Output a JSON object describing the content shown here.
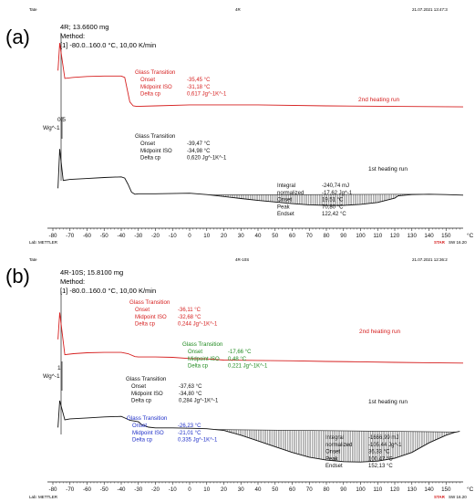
{
  "colors": {
    "red": "#d62020",
    "black": "#111111",
    "green": "#1e8a1e",
    "blue": "#1f2fc8",
    "hatch": "#555555"
  },
  "panels": [
    {
      "letter": "(a)",
      "topleft": "Tate",
      "topcenter": "4R",
      "topright": "21.07.2021 13:47:3",
      "sample": "4R; 13.6600 mg",
      "method": "Method:",
      "program": "[1] -80.0..160.0 °C, 10,00 K/min",
      "footer_left": "Lab: METTLER",
      "footer_right_brand": "STAR",
      "footer_right": "SW 16.20",
      "axis_unit": "°C",
      "y_scale_value": "0.5",
      "y_scale_unit": "Wg^-1",
      "chart_data": {
        "type": "line",
        "title": "",
        "xlabel": "°C",
        "ylabel": "Wg^-1",
        "xlim": [
          -80,
          160
        ],
        "x_ticks": [
          -80,
          -70,
          -60,
          -50,
          -40,
          -30,
          -20,
          -10,
          0,
          10,
          20,
          30,
          40,
          50,
          60,
          70,
          80,
          90,
          100,
          110,
          120,
          130,
          140,
          150
        ],
        "series": [
          {
            "name": "2nd heating run",
            "color": "red",
            "x": [
              -77,
              -76,
              -73,
              -68,
              -60,
              -50,
              -40,
              -38,
              -35,
              -33,
              -31,
              -20,
              0,
              40,
              80,
              120,
              160
            ],
            "y": [
              0.78,
              0.92,
              0.74,
              0.745,
              0.75,
              0.752,
              0.752,
              0.745,
              0.62,
              0.6,
              0.597,
              0.6,
              0.605,
              0.605,
              0.6,
              0.597,
              0.595
            ]
          },
          {
            "name": "1st heating run",
            "color": "black",
            "x": [
              -77,
              -76,
              -74,
              -70,
              -60,
              -50,
              -40,
              -38,
              -36,
              -34,
              -32,
              -30,
              -20,
              0,
              10,
              20,
              30,
              40,
              50,
              60,
              70,
              80,
              90,
              100,
              110,
              120,
              122,
              130,
              140,
              150,
              160
            ],
            "y": [
              0.18,
              0.38,
              0.22,
              0.225,
              0.23,
              0.235,
              0.238,
              0.232,
              0.2,
              0.16,
              0.15,
              0.152,
              0.152,
              0.155,
              0.148,
              0.138,
              0.128,
              0.118,
              0.11,
              0.102,
              0.096,
              0.093,
              0.093,
              0.098,
              0.108,
              0.13,
              0.142,
              0.148,
              0.15,
              0.148,
              0.145
            ]
          }
        ],
        "annotations": [
          {
            "color": "red",
            "title": "Glass Transition",
            "rows": [
              [
                "Onset",
                "-35,45 °C"
              ],
              [
                "Midpoint ISO",
                "-31,18 °C"
              ],
              [
                "Delta cp",
                "0,617 Jg^-1K^-1"
              ]
            ]
          },
          {
            "color": "black",
            "title": "Glass Transition",
            "rows": [
              [
                "Onset",
                "-39,47 °C"
              ],
              [
                "Midpoint ISO",
                "-34,98 °C"
              ],
              [
                "Delta cp",
                "0,620 Jg^-1K^-1"
              ]
            ]
          },
          {
            "color": "black",
            "title": "",
            "rows": [
              [
                "Integral",
                "-240,74 mJ"
              ],
              [
                "normalized",
                "-17,62 Jg^-1"
              ],
              [
                "Onset",
                "19,51 °C"
              ],
              [
                "Peak",
                "70,80 °C"
              ],
              [
                "Endset",
                "122,42 °C"
              ]
            ]
          }
        ],
        "integration": {
          "from": 12,
          "to": 140
        }
      }
    },
    {
      "letter": "(b)",
      "topleft": "Tate",
      "topcenter": "4R-10S",
      "topright": "21.07.2021 12:36:2",
      "sample": "4R-10S; 15.8100 mg",
      "method": "Method:",
      "program": "[1] -80.0..160.0 °C, 10,00 K/min",
      "footer_left": "Lab: METTLER",
      "footer_right_brand": "STAR",
      "footer_right": "SW 16.20",
      "axis_unit": "°C",
      "y_scale_value": "1",
      "y_scale_unit": "Wg^-1",
      "chart_data": {
        "type": "line",
        "title": "",
        "xlabel": "°C",
        "ylabel": "Wg^-1",
        "xlim": [
          -80,
          160
        ],
        "x_ticks": [
          -80,
          -70,
          -60,
          -50,
          -40,
          -30,
          -20,
          -10,
          0,
          10,
          20,
          30,
          40,
          50,
          60,
          70,
          80,
          90,
          100,
          110,
          120,
          130,
          140,
          150
        ],
        "series": [
          {
            "name": "2nd heating run",
            "color": "red",
            "x": [
              -77,
              -76,
              -73,
              -68,
              -60,
              -50,
              -40,
              -36,
              -32,
              -30,
              -20,
              -10,
              0,
              10,
              20,
              40,
              60,
              80,
              100,
              120,
              140,
              160
            ],
            "y": [
              0.72,
              0.86,
              0.64,
              0.645,
              0.65,
              0.652,
              0.652,
              0.645,
              0.63,
              0.628,
              0.628,
              0.626,
              0.62,
              0.618,
              0.612,
              0.61,
              0.608,
              0.605,
              0.603,
              0.6,
              0.598,
              0.596
            ]
          },
          {
            "name": "1st heating run",
            "color": "black",
            "x": [
              -77,
              -76,
              -73,
              -70,
              -60,
              -50,
              -40,
              -38,
              -35,
              -30,
              -28,
              -24,
              -20,
              -10,
              0,
              10,
              20,
              30,
              40,
              50,
              60,
              70,
              80,
              90,
              100,
              110,
              120,
              130,
              140,
              150,
              155,
              158
            ],
            "y": [
              0.26,
              0.4,
              0.3,
              0.305,
              0.31,
              0.315,
              0.318,
              0.31,
              0.298,
              0.29,
              0.275,
              0.262,
              0.258,
              0.258,
              0.256,
              0.254,
              0.245,
              0.22,
              0.19,
              0.16,
              0.13,
              0.105,
              0.09,
              0.082,
              0.08,
              0.085,
              0.1,
              0.13,
              0.18,
              0.22,
              0.235,
              0.24
            ]
          }
        ],
        "annotations": [
          {
            "color": "red",
            "title": "Glass Transition",
            "rows": [
              [
                "Onset",
                "-36,11 °C"
              ],
              [
                "Midpoint ISO",
                "-32,68 °C"
              ],
              [
                "Delta cp",
                "0,244 Jg^-1K^-1"
              ]
            ]
          },
          {
            "color": "green",
            "title": "Glass Transition",
            "rows": [
              [
                "Onset",
                "-17,66 °C"
              ],
              [
                "Midpoint ISO",
                "0,48 °C"
              ],
              [
                "Delta cp",
                "0,221 Jg^-1K^-1"
              ]
            ]
          },
          {
            "color": "black",
            "title": "Glass Transition",
            "rows": [
              [
                "Onset",
                "-37,63 °C"
              ],
              [
                "Midpoint ISO",
                "-34,80 °C"
              ],
              [
                "Delta cp",
                "0,284 Jg^-1K^-1"
              ]
            ]
          },
          {
            "color": "blue",
            "title": "Glass Transition",
            "rows": [
              [
                "Onset",
                "-26,23 °C"
              ],
              [
                "Midpoint ISO",
                "-21,01 °C"
              ],
              [
                "Delta cp",
                "0,335 Jg^-1K^-1"
              ]
            ]
          },
          {
            "color": "black",
            "title": "",
            "rows": [
              [
                "Integral",
                "-1666,99 mJ"
              ],
              [
                "normalized",
                "-105,44 Jg^-1"
              ],
              [
                "Onset",
                "36,33 °C"
              ],
              [
                "Peak",
                "100,47 °C"
              ],
              [
                "Endset",
                "152,13 °C"
              ]
            ]
          }
        ],
        "integration": {
          "from": 15,
          "to": 156
        }
      }
    }
  ]
}
